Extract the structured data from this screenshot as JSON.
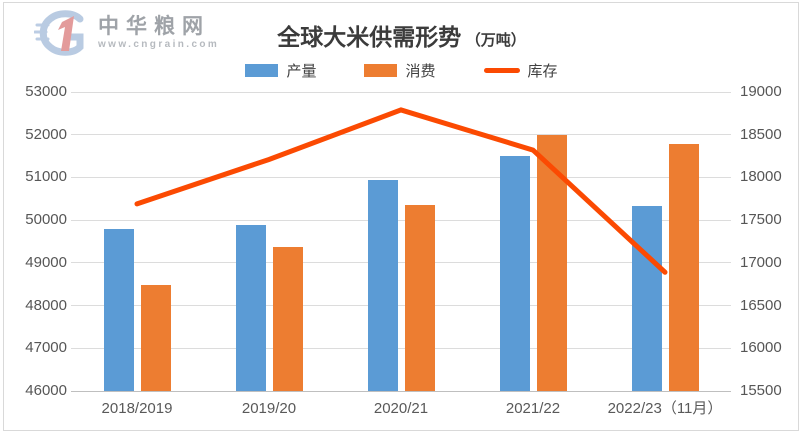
{
  "logo": {
    "brand": "中华粮网",
    "website": "www.cngrain.com"
  },
  "title": {
    "text": "全球大米供需形势",
    "unit": "（万吨）"
  },
  "legend": {
    "items": [
      {
        "label": "产量",
        "swatch": "bar",
        "color": "#5B9BD5"
      },
      {
        "label": "消费",
        "swatch": "bar",
        "color": "#ED7D31"
      },
      {
        "label": "库存",
        "swatch": "line",
        "color": "#FB4A02"
      }
    ]
  },
  "chart_data": {
    "type": "bar",
    "subtype": "grouped-bars-with-secondary-axis-line",
    "title": "全球大米供需形势（万吨）",
    "categories": [
      "2018/2019",
      "2019/20",
      "2020/21",
      "2021/22",
      "2022/23（11月）"
    ],
    "series": [
      {
        "name": "产量",
        "type": "bar",
        "axis": "left",
        "color": "#5B9BD5",
        "values": [
          49800,
          49880,
          50940,
          51510,
          50330
        ]
      },
      {
        "name": "消费",
        "type": "bar",
        "axis": "left",
        "color": "#ED7D31",
        "values": [
          48480,
          49370,
          50350,
          52000,
          51780
        ]
      },
      {
        "name": "库存",
        "type": "line",
        "axis": "right",
        "color": "#FB4A02",
        "values": [
          17690,
          18210,
          18790,
          18320,
          16890
        ]
      }
    ],
    "left_axis": {
      "min": 46000,
      "max": 53000,
      "step": 1000,
      "ticks": [
        53000,
        52000,
        51000,
        50000,
        49000,
        48000,
        47000,
        46000
      ]
    },
    "right_axis": {
      "min": 15500,
      "max": 19000,
      "step": 500,
      "ticks": [
        19000,
        18500,
        18000,
        17500,
        17000,
        16500,
        16000,
        15500
      ]
    },
    "grid": true,
    "grid_color": "#DCDCDC",
    "axis_line_color": "#BFBFBF",
    "tick_label_color": "#595959",
    "legend_position": "top"
  }
}
